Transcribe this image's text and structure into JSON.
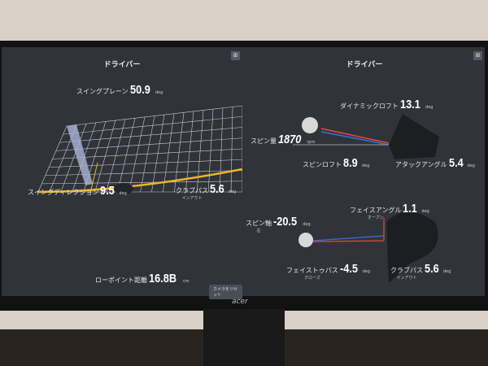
{
  "left_panel": {
    "title": "ドライバー",
    "layout_icon": "grid-icon",
    "swing_plane": {
      "label": "スイングプレーン",
      "value": "50.9",
      "unit": "deg"
    },
    "swing_direction": {
      "label": "スイングディレクション",
      "value": "9.5",
      "unit": "deg"
    },
    "club_path": {
      "label": "クラブパス",
      "sub": "インアウト",
      "value": "5.6",
      "unit": "deg"
    },
    "low_point": {
      "label": "ローポイント距離",
      "value": "16.8B",
      "unit": "cm"
    },
    "camera_reset": "カメラをリセット"
  },
  "right_panel": {
    "title": "ドライバー",
    "layout_icon": "grid-icon",
    "dynamic_loft": {
      "label": "ダイナミックロフト",
      "value": "13.1",
      "unit": "deg"
    },
    "spin_rate": {
      "label": "スピン量",
      "value": "1870",
      "unit": "rpm"
    },
    "spin_loft": {
      "label": "スピンロフト",
      "value": "8.9",
      "unit": "deg"
    },
    "attack_angle": {
      "label": "アタックアングル",
      "value": "5.4",
      "unit": "deg"
    },
    "face_angle": {
      "label": "フェイスアングル",
      "sub": "オープン",
      "value": "1.1",
      "unit": "deg"
    },
    "spin_axis": {
      "label": "スピン軸",
      "sub": "左",
      "value": "-20.5",
      "unit": "deg"
    },
    "face_to_path": {
      "label": "フェイストゥパス",
      "sub": "クローズ",
      "value": "-4.5",
      "unit": "deg"
    },
    "club_path": {
      "label": "クラブパス",
      "sub": "インアウト",
      "value": "5.6",
      "unit": "deg"
    }
  },
  "monitor": {
    "brand": "acer"
  },
  "colors": {
    "accent_yellow": "#f0b428",
    "red": "#e04a3a",
    "blue": "#3a6fd8"
  }
}
